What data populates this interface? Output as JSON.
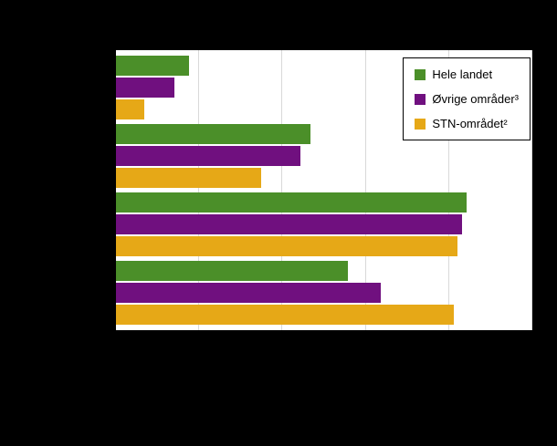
{
  "chart": {
    "background_color": "#000000",
    "plot_background_color": "#ffffff",
    "gridline_color": "#d9d9d9"
  },
  "chart_data": {
    "type": "bar",
    "orientation": "horizontal",
    "title": "",
    "xlabel": "",
    "ylabel": "",
    "categories": [
      "",
      "",
      "",
      ""
    ],
    "series": [
      {
        "name": "Hele landet",
        "color": "#4b8f29",
        "values": [
          8.8,
          23.4,
          42.1,
          27.9
        ]
      },
      {
        "name": "Øvrige områder³",
        "color": "#70107f",
        "values": [
          7.0,
          22.1,
          41.6,
          31.8
        ]
      },
      {
        "name": "STN-området²",
        "color": "#e6a817",
        "values": [
          3.4,
          17.4,
          41.0,
          40.6
        ]
      }
    ],
    "xlim": [
      0,
      50
    ],
    "xticks": [
      0,
      10,
      20,
      30,
      40,
      50
    ],
    "grid": true,
    "legend_position": "top-right"
  },
  "legend": {
    "item_1": "Hele landet",
    "item_2": "Øvrige områder³",
    "item_3": "STN-området²"
  }
}
